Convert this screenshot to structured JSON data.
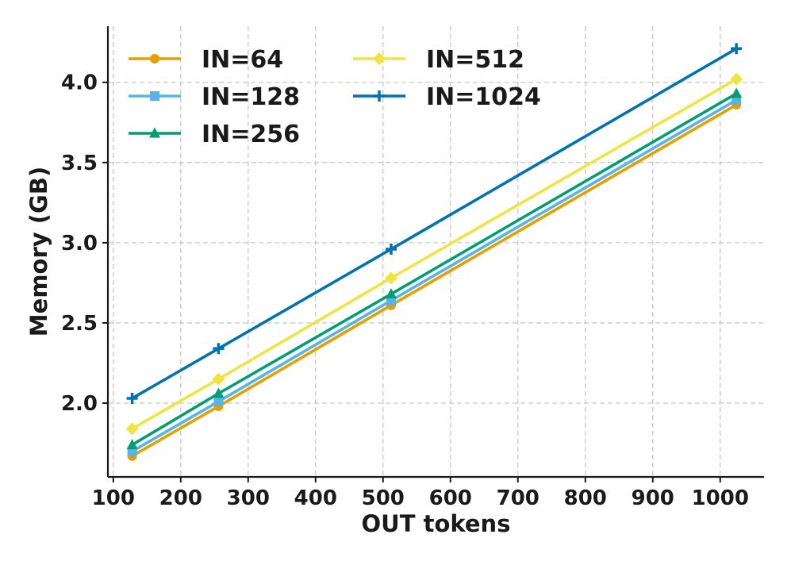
{
  "chart_data": {
    "type": "line",
    "title": "",
    "xlabel": "OUT tokens",
    "ylabel": "Memory (GB)",
    "xlim": [
      92,
      1065
    ],
    "ylim": [
      1.54,
      4.35
    ],
    "xticks": [
      100,
      200,
      300,
      400,
      500,
      600,
      700,
      800,
      900,
      1000
    ],
    "yticks": [
      2.0,
      2.5,
      3.0,
      3.5,
      4.0
    ],
    "xtick_labels": [
      "100",
      "200",
      "300",
      "400",
      "500",
      "600",
      "700",
      "800",
      "900",
      "1000"
    ],
    "ytick_labels": [
      "2.0",
      "2.5",
      "3.0",
      "3.5",
      "4.0"
    ],
    "grid": true,
    "legend_position": "top-left",
    "x": [
      128,
      256,
      512,
      1024
    ],
    "series": [
      {
        "name": "IN=64",
        "values": [
          1.67,
          1.98,
          2.61,
          3.86
        ],
        "color": "#E69F00",
        "marker": "circle"
      },
      {
        "name": "IN=128",
        "values": [
          1.7,
          2.01,
          2.64,
          3.89
        ],
        "color": "#56B4E9",
        "marker": "square"
      },
      {
        "name": "IN=256",
        "values": [
          1.74,
          2.06,
          2.68,
          3.93
        ],
        "color": "#009E73",
        "marker": "triangle"
      },
      {
        "name": "IN=512",
        "values": [
          1.84,
          2.15,
          2.78,
          4.02
        ],
        "color": "#F0E442",
        "marker": "diamond"
      },
      {
        "name": "IN=1024",
        "values": [
          2.03,
          2.34,
          2.96,
          4.21
        ],
        "color": "#0072B2",
        "marker": "plus"
      }
    ]
  }
}
